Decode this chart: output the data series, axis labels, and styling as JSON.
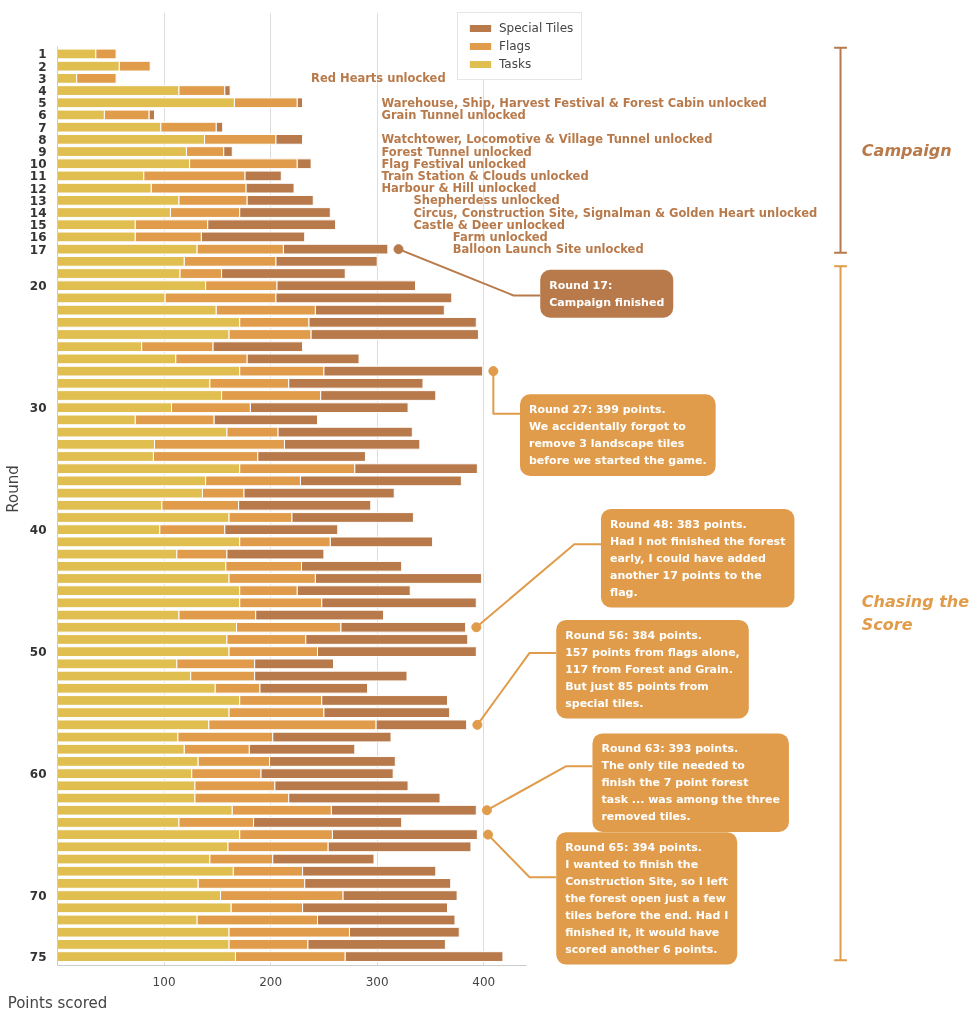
{
  "chart_data": {
    "type": "bar",
    "orientation": "horizontal",
    "stacked": true,
    "xlabel": "Points scored",
    "ylabel": "Round",
    "categories": [
      "1",
      "2",
      "3",
      "4",
      "5",
      "6",
      "7",
      "8",
      "9",
      "10",
      "11",
      "12",
      "13",
      "14",
      "15",
      "16",
      "17",
      null,
      null,
      "20",
      null,
      null,
      null,
      null,
      null,
      null,
      null,
      null,
      null,
      "30",
      null,
      null,
      null,
      null,
      null,
      null,
      null,
      null,
      null,
      "40",
      null,
      null,
      null,
      null,
      null,
      null,
      null,
      null,
      null,
      "50",
      null,
      null,
      null,
      null,
      null,
      null,
      null,
      null,
      null,
      "60",
      null,
      null,
      null,
      null,
      null,
      null,
      null,
      null,
      null,
      "70",
      null,
      null,
      null,
      null,
      "75"
    ],
    "series": [
      {
        "name": "Tasks",
        "color": "#e0be50",
        "values": [
          36,
          58,
          18,
          114,
          166,
          44,
          97,
          138,
          121,
          124,
          81,
          88,
          114,
          106,
          73,
          73,
          131,
          119,
          115,
          139,
          101,
          149,
          171,
          161,
          79,
          111,
          171,
          143,
          154,
          107,
          73,
          159,
          91,
          90,
          171,
          139,
          136,
          98,
          161,
          96,
          171,
          112,
          158,
          161,
          171,
          171,
          114,
          168,
          159,
          161,
          112,
          125,
          148,
          171,
          161,
          142,
          113,
          119,
          132,
          126,
          129,
          129,
          164,
          114,
          171,
          160,
          143,
          165,
          132,
          153,
          163,
          131,
          161,
          161,
          167
        ]
      },
      {
        "name": "Flags",
        "color": "#e09c4a",
        "values": [
          19,
          29,
          37,
          43,
          59,
          42,
          52,
          67,
          35,
          101,
          95,
          89,
          64,
          65,
          68,
          62,
          81,
          86,
          39,
          67,
          104,
          93,
          65,
          77,
          67,
          67,
          79,
          74,
          93,
          74,
          74,
          48,
          122,
          98,
          108,
          89,
          39,
          72,
          59,
          61,
          85,
          47,
          71,
          81,
          54,
          77,
          72,
          98,
          74,
          83,
          73,
          60,
          42,
          77,
          89,
          157,
          89,
          61,
          67,
          65,
          75,
          88,
          93,
          70,
          87,
          94,
          59,
          65,
          100,
          115,
          67,
          113,
          113,
          74,
          103
        ]
      },
      {
        "name": "Special Tiles",
        "color": "#b87a4b",
        "values": [
          null,
          null,
          null,
          5,
          5,
          5,
          6,
          25,
          8,
          13,
          34,
          45,
          62,
          85,
          120,
          97,
          98,
          95,
          116,
          130,
          165,
          121,
          157,
          157,
          84,
          105,
          149,
          126,
          108,
          148,
          97,
          126,
          127,
          101,
          115,
          151,
          141,
          124,
          114,
          106,
          96,
          91,
          94,
          156,
          106,
          145,
          120,
          117,
          152,
          149,
          74,
          143,
          101,
          118,
          118,
          85,
          111,
          99,
          118,
          124,
          125,
          142,
          136,
          139,
          136,
          134,
          95,
          125,
          137,
          107,
          136,
          129,
          103,
          129,
          148
        ]
      }
    ],
    "xlim": [
      0,
      440
    ],
    "xticks": [
      100,
      200,
      300,
      400
    ],
    "grid": "x",
    "legend": "top",
    "annotations": [
      "Red Hearts unlocked",
      "Warehouse, Ship, Harvest Festival & Forest Cabin unlocked",
      "Grain Tunnel unlocked",
      "Watchtower, Locomotive & Village Tunnel unlocked",
      "Forest Tunnel unlocked",
      "Flag Festival unlocked",
      "Train Station & Clouds unlocked",
      "Harbour & Hill unlocked",
      "Shepherdess unlocked",
      "Circus, Construction Site, Signalman & Golden Heart unlocked",
      "Castle & Deer unlocked",
      "Farm unlocked",
      "Balloon Launch Site unlocked",
      "Round 17:\nCampaign finished",
      "Round 27: 399 points.\nWe accidentally forgot to remove 3 landscape tiles before we started the game.",
      "Round 48: 383 points.\nHad I not finished the forest early, I could have added another 17 points to the flag.",
      "Round 56: 384 points.\n157 points from flags alone, 117 from Forest and Grain. But just 85 points from special tiles.",
      "Round 63: 393 points.\nThe only tile needed to finish the 7 point forest task ... was among the three removed tiles.",
      "Round 65: 394 points.\nI wanted to finish the Construction Site, so I left the forest open just a few tiles before the end. Had I finished it, it would have scored another 6 points.",
      "Campaign",
      "Chasing the Score"
    ]
  }
}
